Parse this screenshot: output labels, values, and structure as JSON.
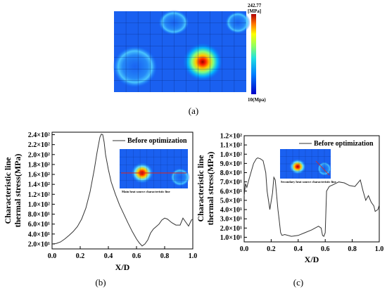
{
  "panel_labels": [
    "(a)",
    "(b)",
    "(c)"
  ],
  "colorbar": {
    "max_label": "242.77",
    "max_unit": "[MPa]",
    "min_label": "10(Mpa)"
  },
  "colors": {
    "curve": "#333333",
    "inset_line": "#e0261f"
  },
  "chart_data": [
    {
      "type": "heatmap",
      "title": "",
      "color_scale": {
        "min": 10,
        "max": 242.77
      }
    },
    {
      "type": "line",
      "title": "",
      "xlabel": "X/D",
      "ylabel_line1": "Characteristic line",
      "ylabel_line2": "thermal stress(MPa)",
      "xlim": [
        0.0,
        1.0
      ],
      "ylim": [
        10,
        245
      ],
      "x_ticks": [
        0.0,
        0.2,
        0.4,
        0.6,
        0.8,
        1.0
      ],
      "x_tick_labels": [
        "0.0",
        "0.2",
        "0.4",
        "0.6",
        "0.8",
        "1.0"
      ],
      "y_ticks": [
        20,
        40,
        60,
        80,
        100,
        120,
        140,
        160,
        180,
        200,
        220,
        240
      ],
      "y_tick_labels": [
        "2.0×10¹",
        "4.0×10¹",
        "6.0×10¹",
        "8.0×10¹",
        "1.0×10²",
        "1.2×10²",
        "1.4×10²",
        "1.6×10²",
        "1.8×10²",
        "2.0×10²",
        "2.2×10²",
        "2.4×10²"
      ],
      "legend": {
        "position": "top-right",
        "entries": [
          "Before optimization"
        ]
      },
      "inset_caption": "Main heat source characteristic line",
      "series": [
        {
          "name": "Before optimization",
          "x": [
            0.0,
            0.03,
            0.06,
            0.09,
            0.12,
            0.15,
            0.18,
            0.21,
            0.24,
            0.27,
            0.3,
            0.32,
            0.34,
            0.35,
            0.36,
            0.37,
            0.38,
            0.4,
            0.42,
            0.45,
            0.48,
            0.51,
            0.54,
            0.57,
            0.6,
            0.62,
            0.64,
            0.66,
            0.68,
            0.7,
            0.72,
            0.74,
            0.76,
            0.78,
            0.8,
            0.82,
            0.85,
            0.88,
            0.91,
            0.93,
            0.95,
            0.97,
            0.99,
            1.0
          ],
          "y": [
            20,
            21,
            24,
            30,
            37,
            45,
            55,
            70,
            92,
            125,
            170,
            205,
            235,
            241,
            240,
            225,
            200,
            170,
            145,
            120,
            98,
            80,
            62,
            45,
            30,
            22,
            16,
            20,
            28,
            42,
            50,
            55,
            60,
            68,
            72,
            70,
            63,
            58,
            58,
            72,
            64,
            56,
            68,
            70
          ]
        }
      ]
    },
    {
      "type": "line",
      "title": "",
      "xlabel": "X/D",
      "ylabel_line1": "Characteristic line",
      "ylabel_line2": "thermal stress(MPa)",
      "xlim": [
        0.0,
        1.0
      ],
      "ylim": [
        5,
        120
      ],
      "x_ticks": [
        0.0,
        0.2,
        0.4,
        0.6,
        0.8,
        1.0
      ],
      "x_tick_labels": [
        "0.0",
        "0.2",
        "0.4",
        "0.6",
        "0.8",
        "1.0"
      ],
      "y_ticks": [
        10,
        20,
        30,
        40,
        50,
        60,
        70,
        80,
        90,
        100,
        110,
        120
      ],
      "y_tick_labels": [
        "1.0×10¹",
        "2.0×10¹",
        "3.0×10¹",
        "4.0×10¹",
        "5.0×10¹",
        "6.0×10¹",
        "7.0×10¹",
        "8.0×10¹",
        "9.0×10¹",
        "1.0×10²",
        "1.1×10²",
        "1.2×10²"
      ],
      "legend": {
        "position": "top-right",
        "entries": [
          "Before optimization"
        ]
      },
      "inset_caption": "Secondary heat source characteristic line",
      "series": [
        {
          "name": "Before optimization",
          "x": [
            0.0,
            0.01,
            0.02,
            0.03,
            0.05,
            0.07,
            0.09,
            0.1,
            0.12,
            0.14,
            0.16,
            0.17,
            0.19,
            0.21,
            0.22,
            0.23,
            0.25,
            0.26,
            0.27,
            0.28,
            0.3,
            0.35,
            0.4,
            0.45,
            0.5,
            0.55,
            0.57,
            0.58,
            0.59,
            0.6,
            0.61,
            0.63,
            0.66,
            0.7,
            0.74,
            0.78,
            0.82,
            0.86,
            0.88,
            0.9,
            0.92,
            0.94,
            0.96,
            0.97,
            0.99,
            1.0
          ],
          "y": [
            55,
            68,
            64,
            70,
            80,
            90,
            95,
            96,
            95,
            93,
            80,
            60,
            40,
            58,
            75,
            72,
            40,
            28,
            15,
            12,
            13,
            11,
            12,
            15,
            18,
            22,
            20,
            12,
            11,
            15,
            60,
            65,
            67,
            70,
            69,
            66,
            65,
            72,
            60,
            50,
            55,
            48,
            44,
            38,
            40,
            45
          ]
        }
      ]
    }
  ]
}
